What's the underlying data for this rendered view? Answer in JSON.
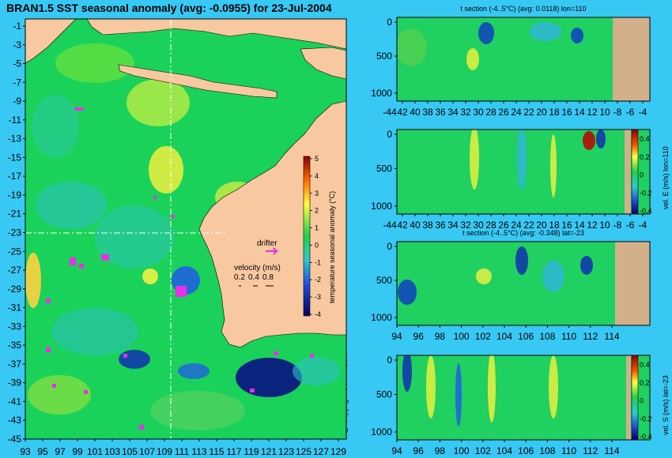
{
  "title": "BRAN1.5 SST seasonal anomaly (avg: -0.0955) for 23-Jul-2004",
  "copyright": "@ Copyright CSIRO 2007",
  "map": {
    "lat_ticks": [
      "-1",
      "-3",
      "-5",
      "-7",
      "-9",
      "-11",
      "-13",
      "-15",
      "-17",
      "-19",
      "-21",
      "-23",
      "-25",
      "-27",
      "-29",
      "-31",
      "-33",
      "-35",
      "-37",
      "-39",
      "-41",
      "-43",
      "-45"
    ],
    "lon_ticks": [
      "93",
      "95",
      "97",
      "99",
      "101",
      "103",
      "105",
      "107",
      "109",
      "111",
      "113",
      "115",
      "117",
      "119",
      "121",
      "123",
      "125",
      "127",
      "129"
    ],
    "lat_range": [
      -45,
      0
    ],
    "lon_range": [
      93,
      130
    ],
    "crosshair": {
      "lon": 110,
      "lat": -23
    },
    "colorbar_label": "temperature seasonal anomaly (°C)",
    "colorbar_ticks": [
      "5",
      "4",
      "3",
      "2",
      "1",
      "0",
      "-1",
      "-2",
      "-3",
      "-4"
    ],
    "drifter_label": "drifter",
    "velocity_label": "velocity (m/s)",
    "velocity_scale": [
      "0.2",
      "0.4",
      "0.8"
    ],
    "colors": {
      "land": "#f8c8a0",
      "ocean": "#18d060",
      "drifter": "#e830e8",
      "background": "#38c8f4"
    }
  },
  "panels": [
    {
      "title": "t section (-4..5°C) (avg: 0.0118) lon=110",
      "y_ticks": [
        "0",
        "500",
        "1000"
      ],
      "x_ticks": [
        "-44",
        "42",
        "40",
        "38",
        "36",
        "34",
        "32",
        "30",
        "28",
        "26",
        "24",
        "22",
        "20",
        "18",
        "16",
        "14",
        "12",
        "10",
        "-8",
        "-6",
        "-4"
      ],
      "colorbar_label": "",
      "colorbar_ticks": []
    },
    {
      "title": "",
      "y_ticks": [
        "0",
        "500",
        "1000"
      ],
      "x_ticks": [
        "-44",
        "42",
        "40",
        "38",
        "36",
        "34",
        "32",
        "30",
        "28",
        "26",
        "24",
        "22",
        "20",
        "18",
        "16",
        "14",
        "12",
        "10",
        "-8",
        "-6",
        "-4"
      ],
      "colorbar_label": "vel. E (m/s) lon=110",
      "colorbar_ticks": [
        "0.4",
        "0.2",
        "0",
        "-0.2",
        "-0.4"
      ]
    },
    {
      "title": "t section (-4..5°C) (avg: -0.348) lat=-23",
      "y_ticks": [
        "0",
        "500",
        "1000"
      ],
      "x_ticks": [
        "94",
        "96",
        "98",
        "100",
        "102",
        "104",
        "106",
        "108",
        "110",
        "112",
        "114"
      ],
      "colorbar_label": "",
      "colorbar_ticks": []
    },
    {
      "title": "",
      "y_ticks": [
        "0",
        "500",
        "1000"
      ],
      "x_ticks": [
        "94",
        "96",
        "98",
        "100",
        "102",
        "104",
        "106",
        "108",
        "110",
        "112",
        "114"
      ],
      "colorbar_label": "vel. S (m/s) lat=-23",
      "colorbar_ticks": [
        "0.4",
        "0.2",
        "0",
        "-0.2",
        "-0.4"
      ]
    }
  ]
}
